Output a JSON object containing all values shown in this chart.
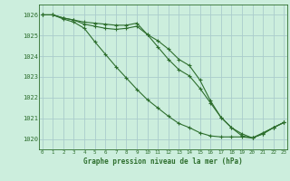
{
  "xlabel": "Graphe pression niveau de la mer (hPa)",
  "background_color": "#cceedd",
  "grid_color": "#aacccc",
  "line_color": "#2d6e2d",
  "ylim": [
    1019.5,
    1026.5
  ],
  "xlim": [
    -0.3,
    23.3
  ],
  "yticks": [
    1020,
    1021,
    1022,
    1023,
    1024,
    1025,
    1026
  ],
  "xticks": [
    0,
    1,
    2,
    3,
    4,
    5,
    6,
    7,
    8,
    9,
    10,
    11,
    12,
    13,
    14,
    15,
    16,
    17,
    18,
    19,
    20,
    21,
    22,
    23
  ],
  "series1": [
    1026.0,
    1026.0,
    1025.85,
    1025.75,
    1025.65,
    1025.6,
    1025.55,
    1025.5,
    1025.5,
    1025.6,
    1025.05,
    1024.75,
    1024.35,
    1023.85,
    1023.55,
    1022.85,
    1021.85,
    1021.05,
    1020.55,
    1020.15,
    1020.05,
    1020.3,
    1020.55,
    1020.8
  ],
  "series2": [
    1026.0,
    1026.0,
    1025.85,
    1025.75,
    1025.55,
    1025.45,
    1025.35,
    1025.3,
    1025.35,
    1025.45,
    1025.05,
    1024.45,
    1023.85,
    1023.35,
    1023.05,
    1022.45,
    1021.75,
    1021.05,
    1020.55,
    1020.25,
    1020.05,
    1020.25,
    1020.55,
    1020.8
  ],
  "series3": [
    1026.0,
    1026.0,
    1025.8,
    1025.65,
    1025.35,
    1024.7,
    1024.1,
    1023.5,
    1022.95,
    1022.4,
    1021.9,
    1021.5,
    1021.1,
    1020.75,
    1020.55,
    1020.3,
    1020.15,
    1020.1,
    1020.1,
    1020.1,
    1020.05,
    1020.25,
    1020.55,
    1020.8
  ]
}
